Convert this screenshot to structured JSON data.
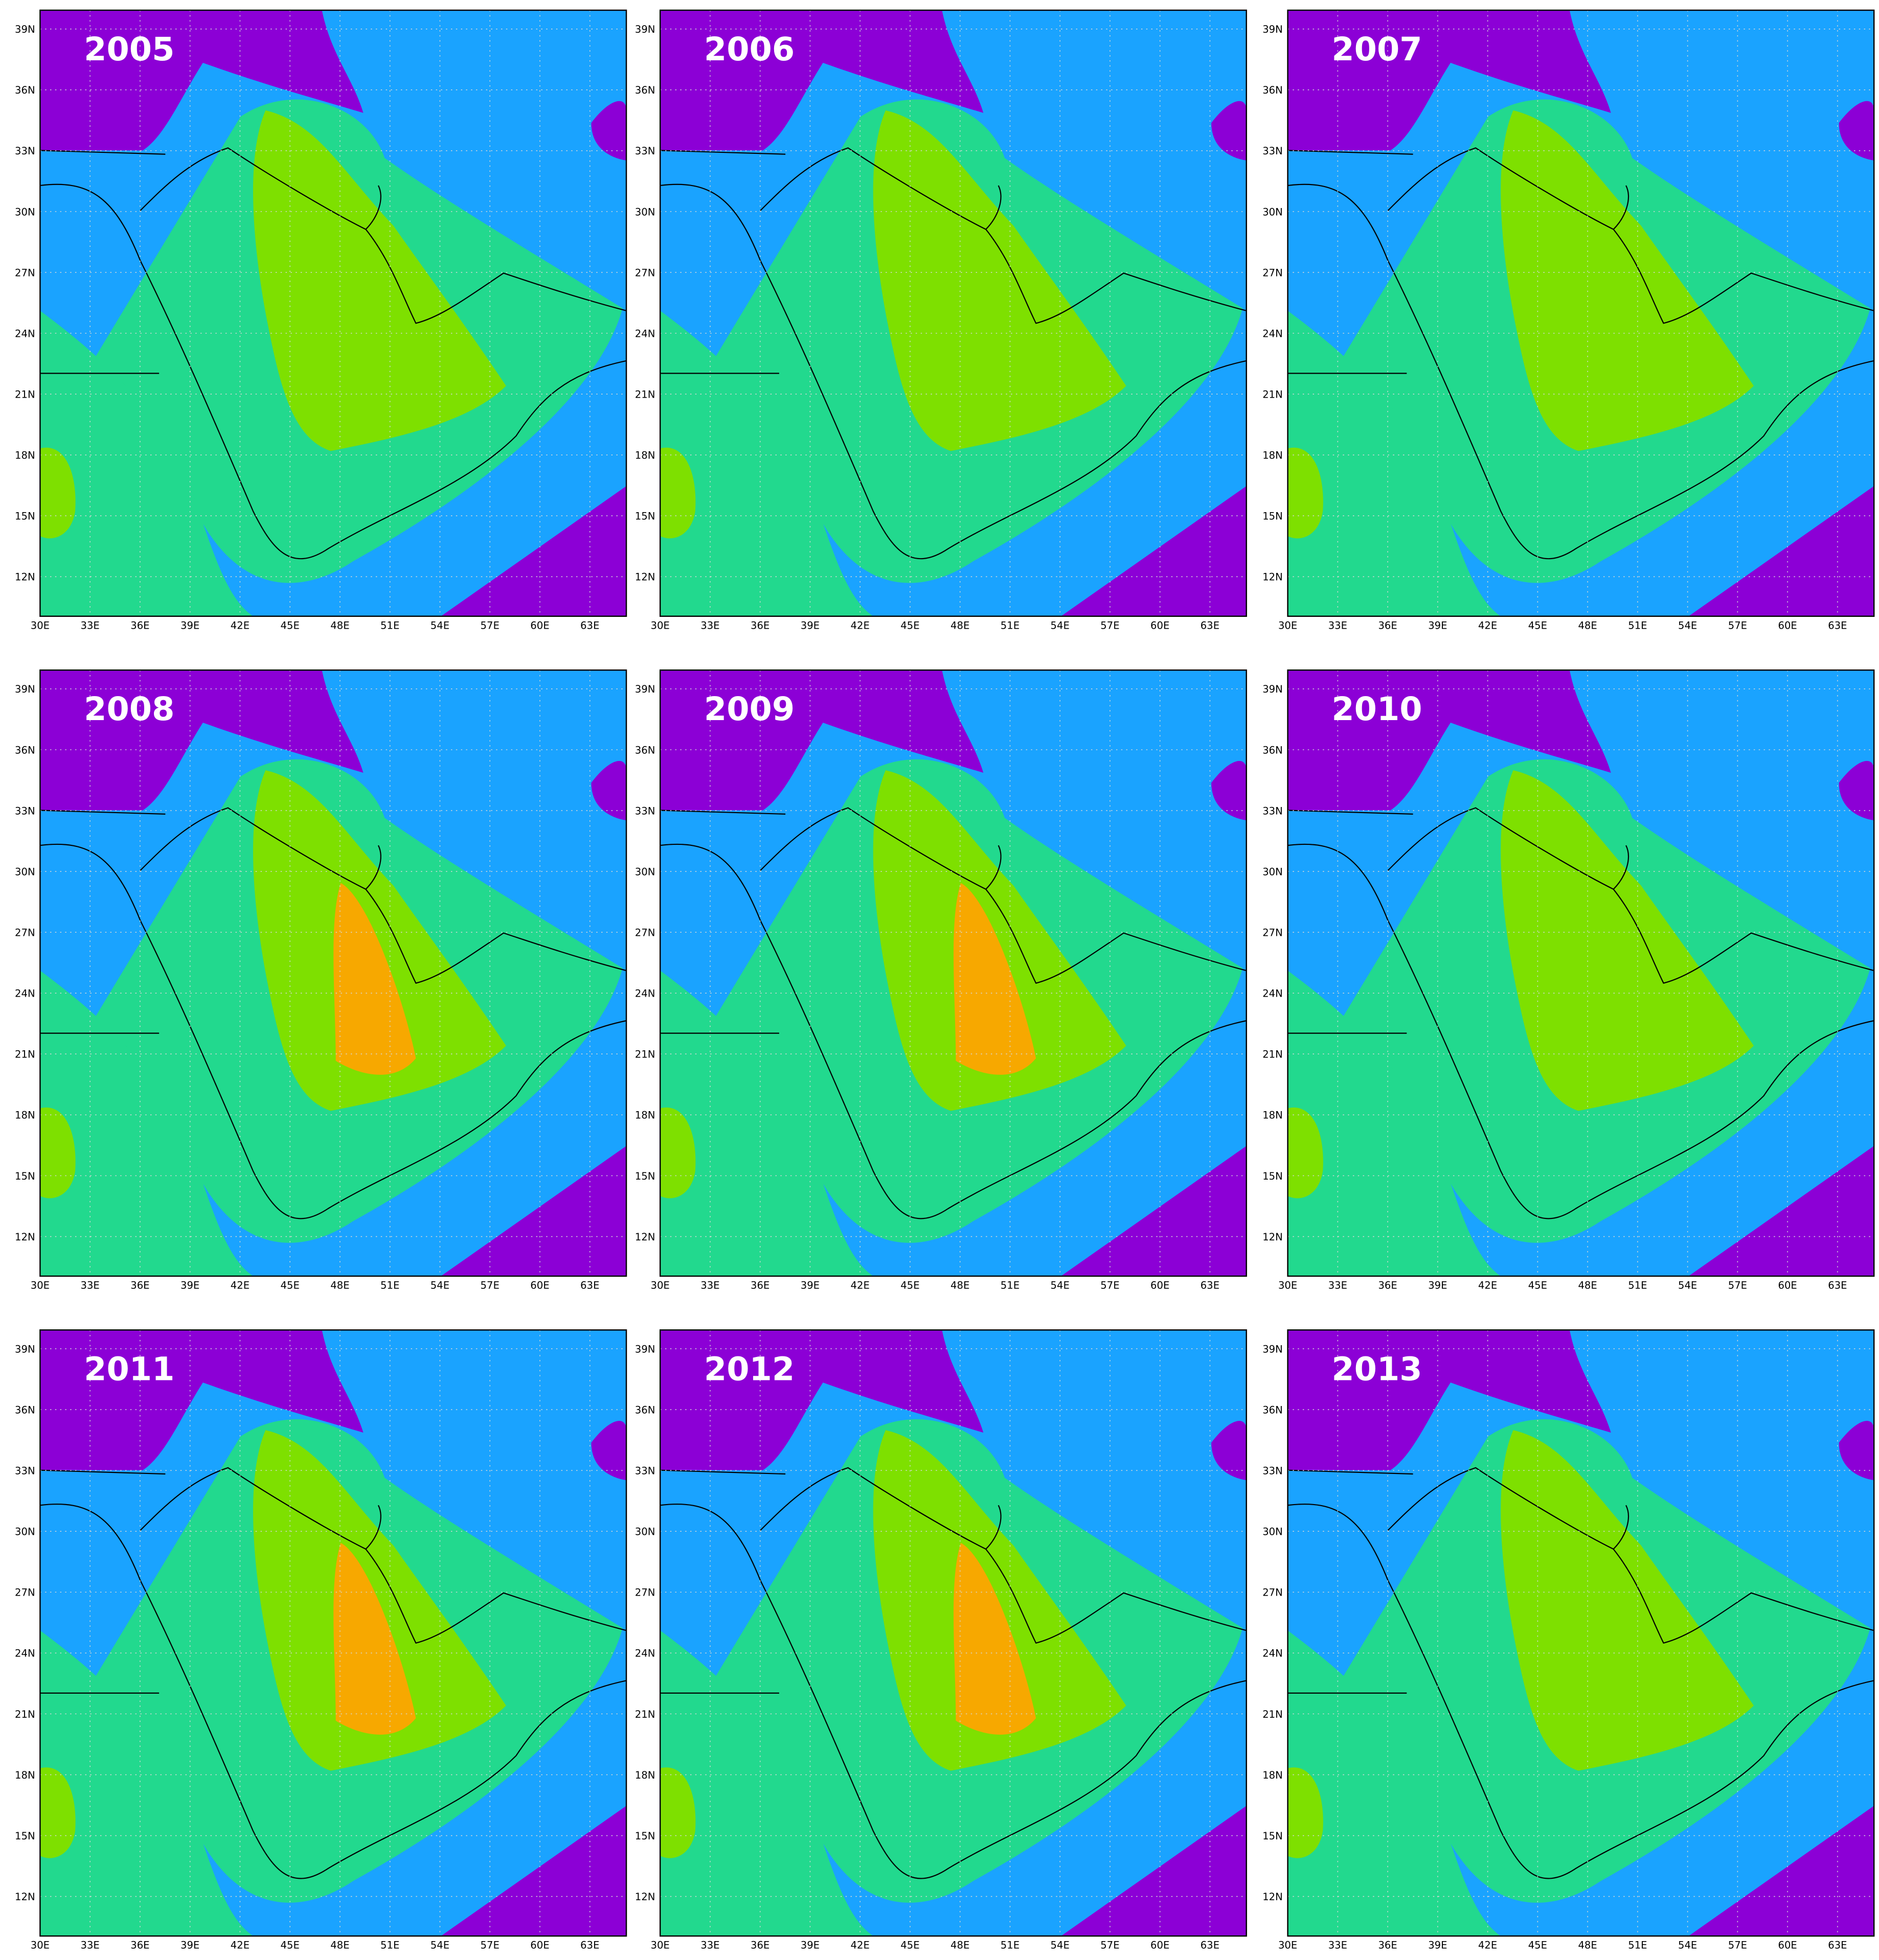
{
  "panels": [
    {
      "year": "2005"
    },
    {
      "year": "2006"
    },
    {
      "year": "2007"
    },
    {
      "year": "2008"
    },
    {
      "year": "2009"
    },
    {
      "year": "2010"
    },
    {
      "year": "2011"
    },
    {
      "year": "2012"
    },
    {
      "year": "2013"
    }
  ],
  "x_labels": [
    "30E",
    "33E",
    "36E",
    "39E",
    "42E",
    "45E",
    "48E",
    "51E",
    "54E",
    "57E",
    "60E",
    "63E"
  ],
  "y_labels": [
    "39N",
    "36N",
    "33N",
    "30N",
    "27N",
    "24N",
    "21N",
    "18N",
    "15N",
    "12N"
  ]
}
